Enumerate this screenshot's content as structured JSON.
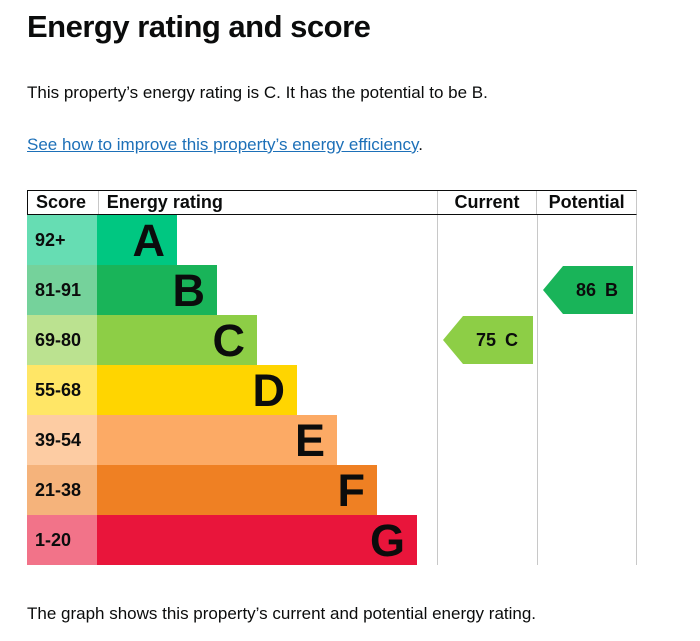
{
  "page": {
    "title": "Energy rating and score",
    "intro": "This property’s energy rating is C. It has the potential to be B.",
    "link_text": "See how to improve this property’s energy efficiency",
    "link_suffix": ".",
    "footer_text": "The graph shows this property’s current and potential energy rating."
  },
  "colors": {
    "text": "#0b0c0c",
    "link": "#1d70b8",
    "grid_line": "#c8c8c8",
    "header_border": "#0b0c0c"
  },
  "chart_data": {
    "type": "bar",
    "title": "Energy rating and score",
    "columns": [
      "Score",
      "Energy rating",
      "Current",
      "Potential"
    ],
    "categories": [
      "A",
      "B",
      "C",
      "D",
      "E",
      "F",
      "G"
    ],
    "score_ranges": [
      "92+",
      "81-91",
      "69-80",
      "55-68",
      "39-54",
      "21-38",
      "1-20"
    ],
    "bar_relative_widths": [
      1,
      2,
      3,
      4,
      5,
      6,
      7
    ],
    "band_colors": [
      "#00c781",
      "#19b459",
      "#8dce46",
      "#ffd500",
      "#fcaa65",
      "#ef8023",
      "#e9153b"
    ],
    "score_cell_tints": [
      "#66ddb3",
      "#75d29b",
      "#bbe290",
      "#ffe666",
      "#fdcca3",
      "#f5b37b",
      "#f27389"
    ],
    "legend_position": "none",
    "grid": "off",
    "markers": {
      "current": {
        "label": "Current",
        "value": "75",
        "band": "C",
        "color": "#8dce46",
        "row": 2
      },
      "potential": {
        "label": "Potential",
        "value": "86",
        "band": "B",
        "color": "#19b459",
        "row": 1
      }
    }
  }
}
